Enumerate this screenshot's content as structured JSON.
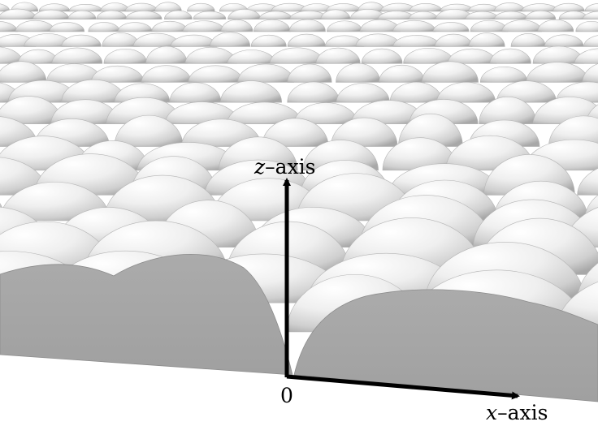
{
  "figure": {
    "z_axis_var": "z",
    "z_axis_word": "axis",
    "x_axis_var": "x",
    "x_axis_word": "axis",
    "origin_label": "0"
  },
  "colors": {
    "dome_light": "#ffffff",
    "dome_mid": "#e6e6e6",
    "dome_dark": "#a9a9a9",
    "cross_section": "#a6a6a6",
    "cross_section_edge": "#8c8c8c",
    "axis": "#000000"
  }
}
